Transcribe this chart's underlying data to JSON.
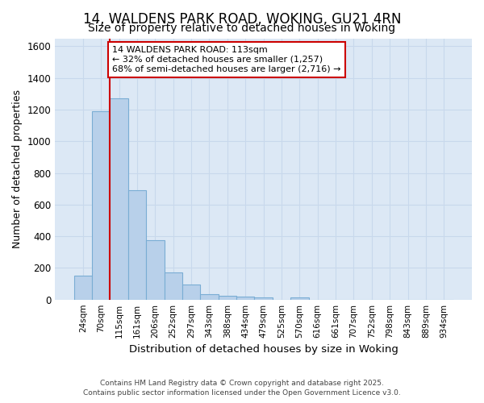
{
  "title_line1": "14, WALDENS PARK ROAD, WOKING, GU21 4RN",
  "title_line2": "Size of property relative to detached houses in Woking",
  "xlabel": "Distribution of detached houses by size in Woking",
  "ylabel": "Number of detached properties",
  "categories": [
    "24sqm",
    "70sqm",
    "115sqm",
    "161sqm",
    "206sqm",
    "252sqm",
    "297sqm",
    "343sqm",
    "388sqm",
    "434sqm",
    "479sqm",
    "525sqm",
    "570sqm",
    "616sqm",
    "661sqm",
    "707sqm",
    "752sqm",
    "798sqm",
    "843sqm",
    "889sqm",
    "934sqm"
  ],
  "values": [
    150,
    1190,
    1270,
    690,
    375,
    170,
    95,
    35,
    25,
    20,
    15,
    0,
    15,
    0,
    0,
    0,
    0,
    0,
    0,
    0,
    0
  ],
  "bar_color": "#b8d0ea",
  "bar_edge_color": "#7aadd4",
  "plot_bg_color": "#dce8f5",
  "fig_bg_color": "#ffffff",
  "grid_color": "#c8d8ec",
  "red_line_bar_index": 2,
  "annotation_line1": "14 WALDENS PARK ROAD: 113sqm",
  "annotation_line2": "← 32% of detached houses are smaller (1,257)",
  "annotation_line3": "68% of semi-detached houses are larger (2,716) →",
  "annotation_box_facecolor": "#ffffff",
  "annotation_box_edgecolor": "#cc0000",
  "ylim": [
    0,
    1650
  ],
  "yticks": [
    0,
    200,
    400,
    600,
    800,
    1000,
    1200,
    1400,
    1600
  ],
  "red_line_color": "#cc0000",
  "title_fontsize": 12,
  "subtitle_fontsize": 10,
  "footer_line1": "Contains HM Land Registry data © Crown copyright and database right 2025.",
  "footer_line2": "Contains public sector information licensed under the Open Government Licence v3.0."
}
